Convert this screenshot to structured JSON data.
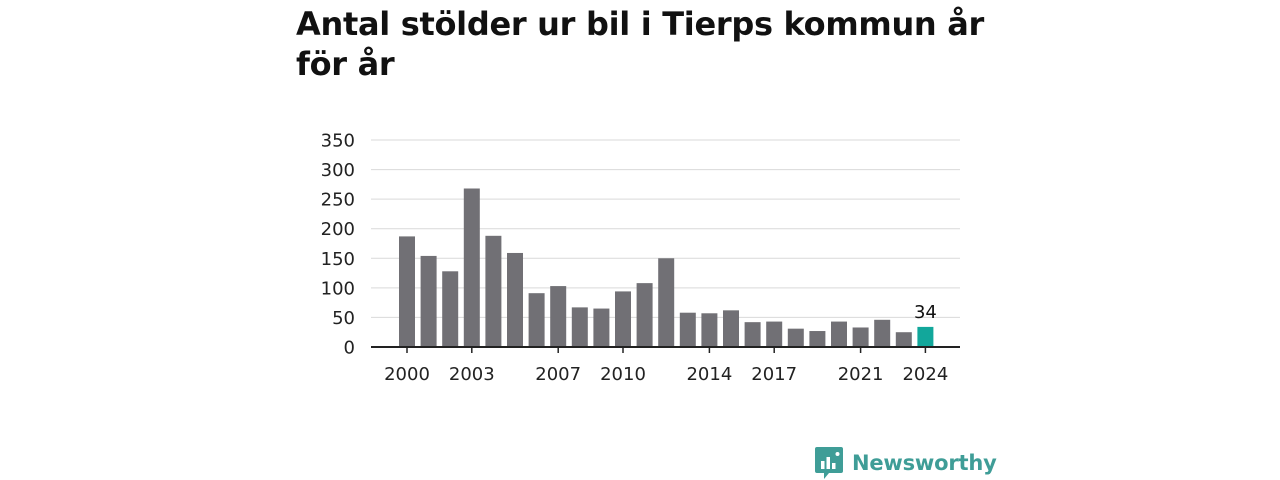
{
  "colors": {
    "bar": "#717075",
    "highlight": "#12a79b",
    "grid": "#d9d9d9",
    "axis": "#222222",
    "brand": "#3f9d97"
  },
  "brand": {
    "name": "Newsworthy",
    "icon": "bar-chart-speech-bubble-icon"
  },
  "chart_data": {
    "type": "bar",
    "title": "Antal stölder ur bil i Tierps kommun år för år",
    "xlabel": "",
    "ylabel": "",
    "ylim": [
      0,
      350
    ],
    "yticks": [
      0,
      50,
      100,
      150,
      200,
      250,
      300,
      350
    ],
    "xtick_labels": [
      "2000",
      "2003",
      "2007",
      "2010",
      "2014",
      "2017",
      "2021",
      "2024"
    ],
    "grid": true,
    "legend": "none",
    "categories": [
      2000,
      2001,
      2002,
      2003,
      2004,
      2005,
      2006,
      2007,
      2008,
      2009,
      2010,
      2011,
      2012,
      2013,
      2014,
      2015,
      2016,
      2017,
      2018,
      2019,
      2020,
      2021,
      2022,
      2023,
      2024
    ],
    "values": [
      187,
      154,
      128,
      268,
      188,
      159,
      91,
      103,
      67,
      65,
      94,
      108,
      150,
      58,
      57,
      62,
      42,
      43,
      31,
      27,
      43,
      33,
      46,
      25,
      34
    ],
    "highlight_category": 2024,
    "annotations": [
      {
        "category": 2024,
        "text": "34"
      }
    ]
  }
}
